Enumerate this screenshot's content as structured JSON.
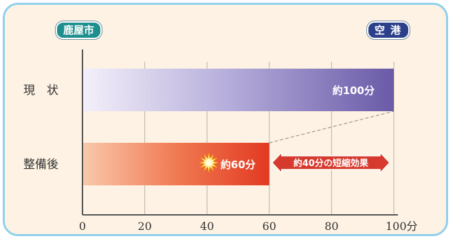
{
  "header": {
    "origin": "鹿屋市",
    "destination": "空港"
  },
  "annotation": {
    "reduction_label": "約40分の短縮効果"
  },
  "chart_data": {
    "type": "bar",
    "orientation": "horizontal",
    "categories": [
      "現　状",
      "整備後"
    ],
    "values": [
      100,
      60
    ],
    "value_labels": [
      "約100分",
      "約60分"
    ],
    "xlim": [
      0,
      100
    ],
    "x_ticks": [
      0,
      20,
      40,
      60,
      80,
      100
    ],
    "x_tick_labels": [
      "0",
      "20",
      "40",
      "60",
      "80",
      "100分"
    ],
    "grid": true,
    "colors": {
      "current_bar": "#6a5aa8",
      "after_bar": "#e84a2a",
      "arrow": "#d63a2e"
    }
  }
}
